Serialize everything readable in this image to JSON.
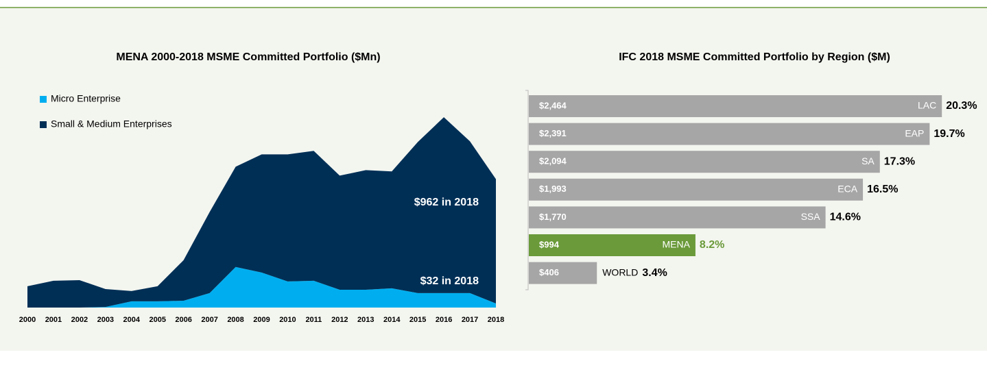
{
  "chart_data": [
    {
      "type": "stacked_area",
      "title": "MENA 2000-2018 MSME Committed Portfolio ($Mn)",
      "categories": [
        "2000",
        "2001",
        "2002",
        "2003",
        "2004",
        "2005",
        "2006",
        "2007",
        "2008",
        "2009",
        "2010",
        "2011",
        "2012",
        "2013",
        "2014",
        "2015",
        "2016",
        "2017",
        "2018"
      ],
      "series": [
        {
          "name": "Micro Enterprise",
          "color": "#00aeef",
          "values": [
            0,
            0,
            0,
            5,
            48,
            48,
            53,
            112,
            314,
            271,
            202,
            207,
            138,
            138,
            149,
            112,
            112,
            112,
            32
          ]
        },
        {
          "name": "Small & Medium Enterprises",
          "color": "#002f56",
          "values": [
            165,
            207,
            212,
            138,
            80,
            117,
            314,
            627,
            776,
            914,
            983,
            1005,
            883,
            925,
            904,
            1169,
            1361,
            1175,
            962
          ]
        }
      ],
      "annotations": [
        "$962 in 2018",
        "$32 in 2018"
      ],
      "ylim": [
        0,
        1500
      ],
      "legend": "top-left"
    },
    {
      "type": "horizontal_bar",
      "title": "IFC 2018 MSME Committed Portfolio by Region ($M)",
      "categories": [
        "LAC",
        "EAP",
        "SA",
        "ECA",
        "SSA",
        "MENA",
        "WORLD"
      ],
      "values": [
        2464,
        2391,
        2094,
        1993,
        1770,
        994,
        406
      ],
      "value_labels": [
        "$2,464",
        "$2,391",
        "$2,094",
        "$1,993",
        "$1,770",
        "$994",
        "$406"
      ],
      "percentages": [
        20.3,
        19.7,
        17.3,
        16.5,
        14.6,
        8.2,
        3.4
      ],
      "percentage_labels": [
        "20.3%",
        "19.7%",
        "17.3%",
        "16.5%",
        "14.6%",
        "8.2%",
        "3.4%"
      ],
      "colors": [
        "#a6a6a6",
        "#a6a6a6",
        "#a6a6a6",
        "#a6a6a6",
        "#a6a6a6",
        "#6a9a3a",
        "#a6a6a6"
      ],
      "xlim": [
        0,
        2500
      ]
    }
  ]
}
